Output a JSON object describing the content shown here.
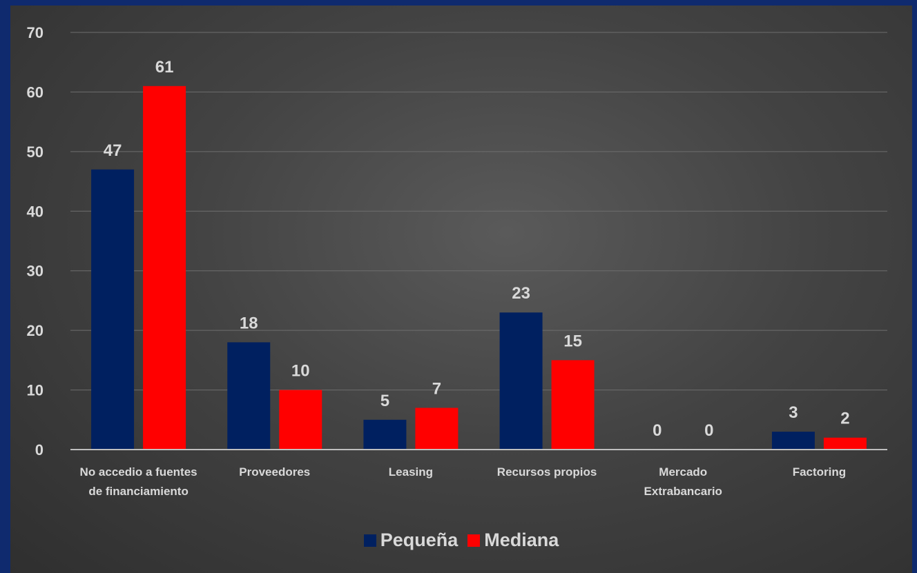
{
  "chart_data": {
    "type": "bar",
    "categories": [
      [
        "No accedio a fuentes",
        "de financiamiento"
      ],
      [
        "Proveedores"
      ],
      [
        "Leasing"
      ],
      [
        "Recursos propios"
      ],
      [
        "Mercado",
        "Extrabancario"
      ],
      [
        "Factoring"
      ]
    ],
    "series": [
      {
        "name": "Pequeña",
        "color": "#002060",
        "values": [
          47,
          18,
          5,
          23,
          0,
          3
        ]
      },
      {
        "name": "Mediana",
        "color": "#ff0000",
        "values": [
          61,
          10,
          7,
          15,
          0,
          2
        ]
      }
    ],
    "ylim": [
      0,
      70
    ],
    "yticks": [
      0,
      10,
      20,
      30,
      40,
      50,
      60,
      70
    ],
    "grid": true,
    "legend_position": "bottom"
  }
}
